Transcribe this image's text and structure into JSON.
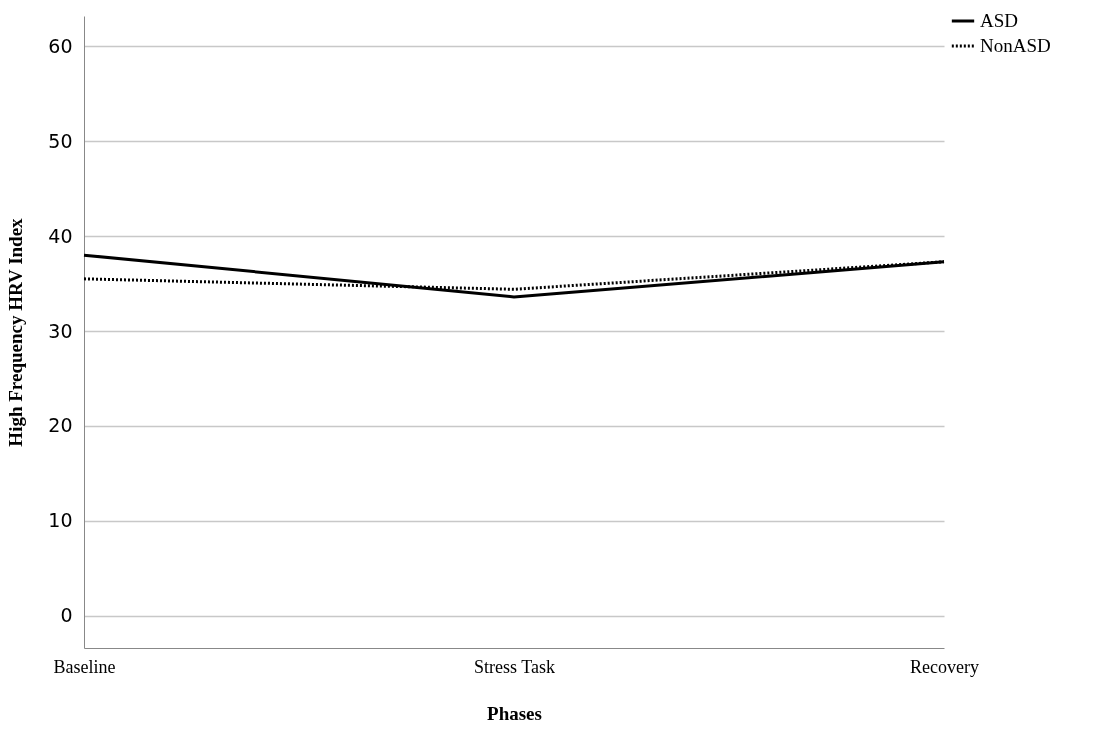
{
  "chart_data": {
    "type": "line",
    "xlabel": "Phases",
    "ylabel": "High Frequency HRV Index",
    "categories": [
      "Baseline",
      "Stress Task",
      "Recovery"
    ],
    "series": [
      {
        "name": "ASD",
        "color": "#000000",
        "line_style": "solid",
        "values": [
          38.0,
          33.6,
          37.3
        ]
      },
      {
        "name": "NonASD",
        "color": "#000000",
        "line_style": "dotted",
        "values": [
          35.5,
          34.4,
          37.3
        ]
      }
    ],
    "ylim": [
      -3.4,
      63.2
    ],
    "yticks": [
      0,
      10,
      20,
      30,
      40,
      50,
      60
    ],
    "grid": "y",
    "legend": "top right",
    "marker": "none"
  }
}
